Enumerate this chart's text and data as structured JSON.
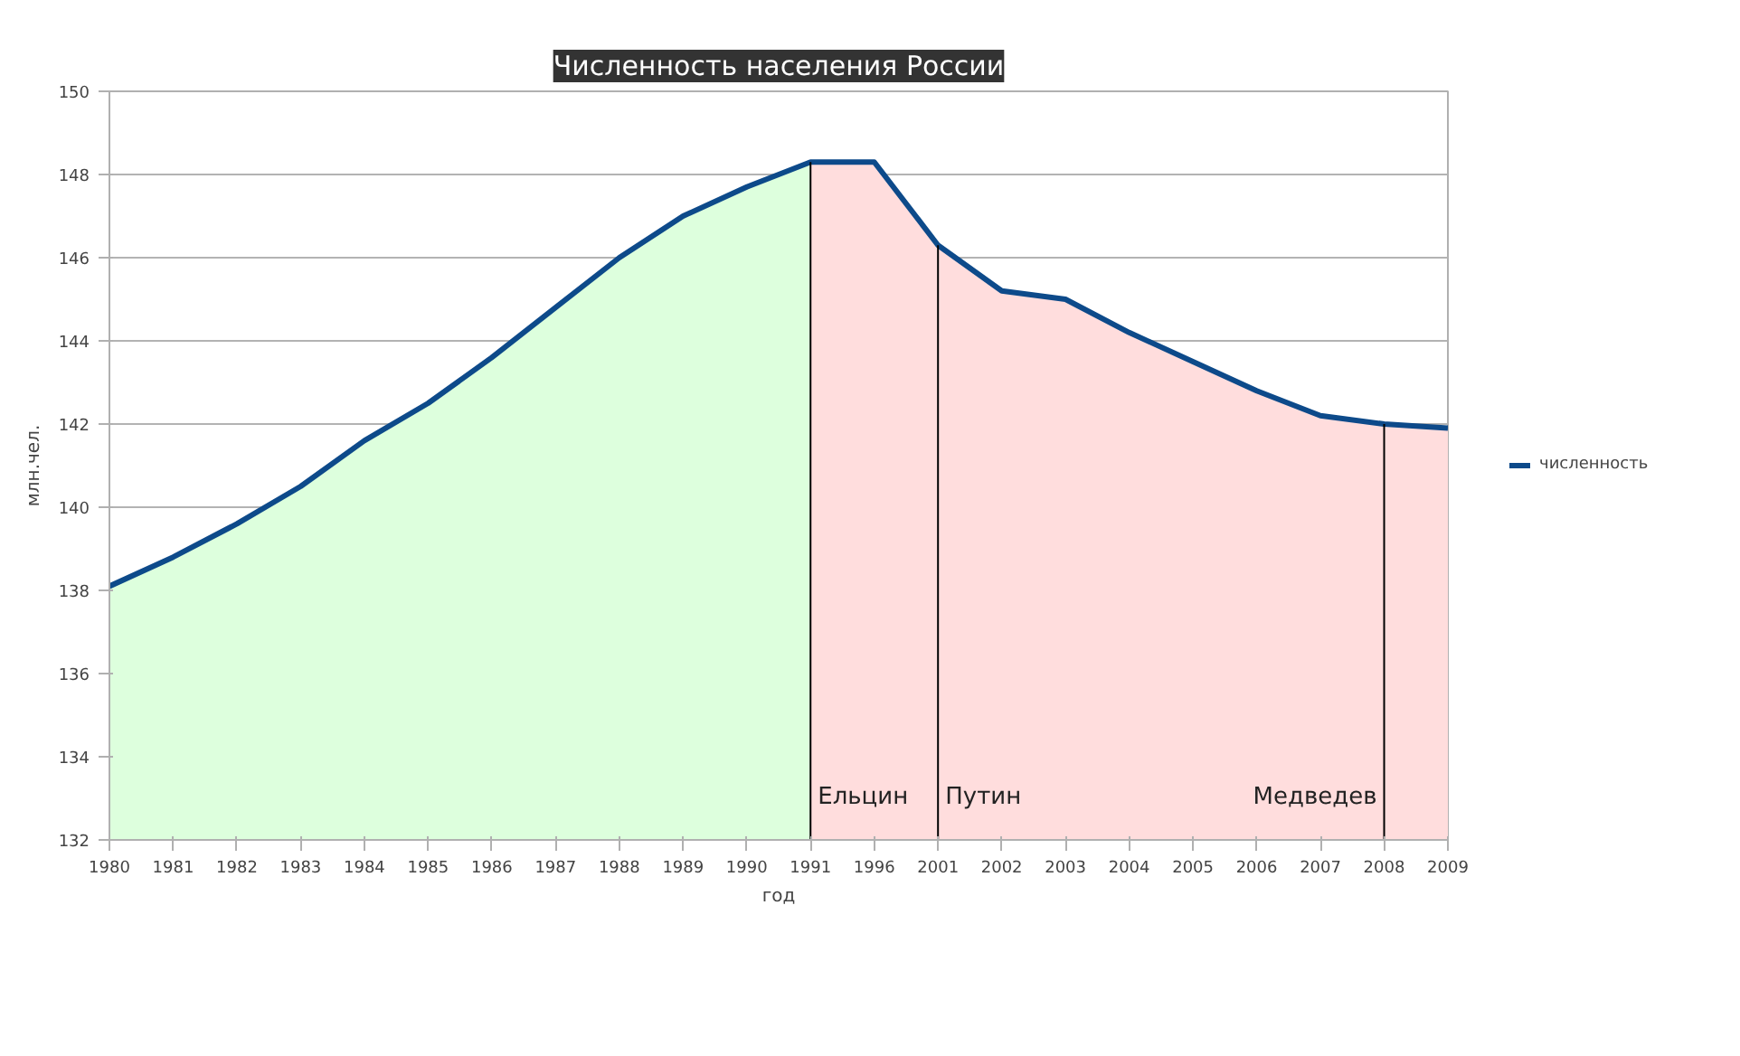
{
  "chart_data": {
    "type": "line",
    "title": "Численность населения России",
    "xlabel": "год",
    "ylabel": "млн.чел.",
    "categories": [
      "1980",
      "1981",
      "1982",
      "1983",
      "1984",
      "1985",
      "1986",
      "1987",
      "1988",
      "1989",
      "1990",
      "1991",
      "1996",
      "2001",
      "2002",
      "2003",
      "2004",
      "2005",
      "2006",
      "2007",
      "2008",
      "2009"
    ],
    "series": [
      {
        "type": "area",
        "color": "#ddffdd",
        "values": [
          138.1,
          138.8,
          139.6,
          140.5,
          141.6,
          142.5,
          143.6,
          144.8,
          146.0,
          147.0,
          147.7,
          148.3,
          null,
          null,
          null,
          null,
          null,
          null,
          null,
          null,
          null,
          null
        ]
      },
      {
        "type": "area",
        "color": "#ffdddd",
        "values": [
          null,
          null,
          null,
          null,
          null,
          null,
          null,
          null,
          null,
          null,
          null,
          148.3,
          148.3,
          146.3,
          145.2,
          145.0,
          144.2,
          143.5,
          142.8,
          142.2,
          142.0,
          141.9
        ]
      },
      {
        "name": "численность",
        "color": "#0d4a8a",
        "values": [
          138.1,
          138.8,
          139.6,
          140.5,
          141.6,
          142.5,
          143.6,
          144.8,
          146.0,
          147.0,
          147.7,
          148.3,
          148.3,
          146.3,
          145.2,
          145.0,
          144.2,
          143.5,
          142.8,
          142.2,
          142.0,
          141.9
        ]
      }
    ],
    "ref_lines": [
      {
        "axis": "x",
        "value": "1991",
        "label": "Ельцин",
        "color": "#000000"
      },
      {
        "axis": "x",
        "value": "2001",
        "label": "Путин",
        "color": "#000000"
      },
      {
        "axis": "x",
        "value": "2008",
        "label": "Медведев",
        "color": "#000000"
      }
    ],
    "ylim": [
      132,
      150
    ],
    "yticks": [
      132,
      134,
      136,
      138,
      140,
      142,
      144,
      146,
      148,
      150
    ],
    "grid": "y",
    "legend": "right",
    "marker": "none",
    "line_style": "solid"
  }
}
